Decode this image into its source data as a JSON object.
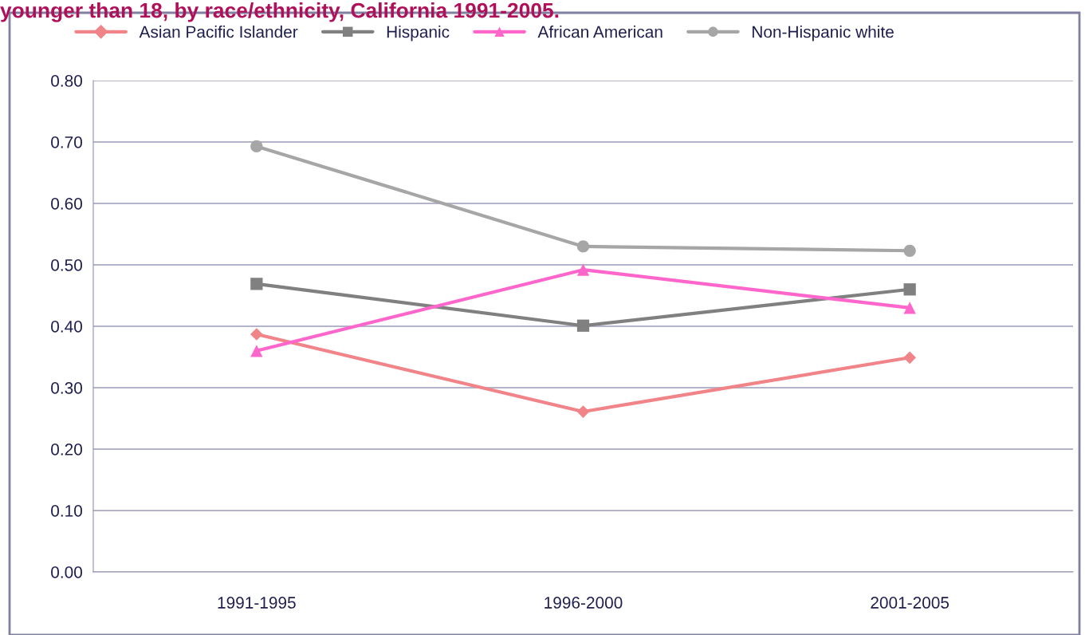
{
  "chart_data": {
    "type": "line",
    "title": "younger than 18, by race/ethnicity, California 1991-2005.",
    "categories": [
      "1991-1995",
      "1996-2000",
      "2001-2005"
    ],
    "series": [
      {
        "name": "Asian Pacific Islander",
        "color": "#f08488",
        "marker": "diamond",
        "values": [
          0.387,
          0.261,
          0.349
        ]
      },
      {
        "name": "Hispanic",
        "color": "#808080",
        "marker": "square",
        "values": [
          0.469,
          0.401,
          0.46
        ]
      },
      {
        "name": "African American",
        "color": "#ff66cc",
        "marker": "triangle",
        "values": [
          0.36,
          0.492,
          0.43
        ]
      },
      {
        "name": "Non-Hispanic white",
        "color": "#a6a6a6",
        "marker": "circle",
        "values": [
          0.693,
          0.53,
          0.523
        ]
      }
    ],
    "ylim": [
      0,
      0.8
    ],
    "yticks": [
      {
        "value": 0,
        "label": "0.00"
      },
      {
        "value": 0.1,
        "label": "0.10"
      },
      {
        "value": 0.2,
        "label": "0.20"
      },
      {
        "value": 0.3,
        "label": "0.30"
      },
      {
        "value": 0.4,
        "label": "0.40"
      },
      {
        "value": 0.5,
        "label": "0.50"
      },
      {
        "value": 0.6,
        "label": "0.60"
      },
      {
        "value": 0.7,
        "label": "0.70"
      },
      {
        "value": 0.8,
        "label": "0.80"
      }
    ],
    "grid": "y",
    "legend": "top",
    "line_style": "solid"
  }
}
